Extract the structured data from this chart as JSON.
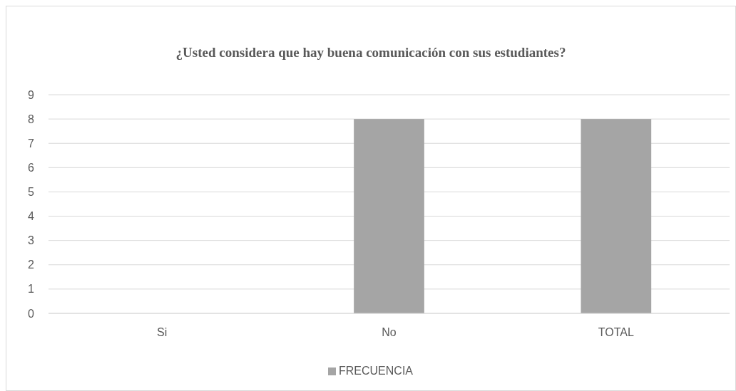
{
  "chart_data": {
    "type": "bar",
    "title": "¿Usted considera que hay buena comunicación con sus estudiantes?",
    "categories": [
      "Si",
      "No",
      "TOTAL"
    ],
    "series": [
      {
        "name": "FRECUENCIA",
        "color": "#a5a5a5",
        "values": [
          0,
          8,
          8
        ]
      }
    ],
    "ylim": [
      0,
      9
    ],
    "yticks": [
      0,
      1,
      2,
      3,
      4,
      5,
      6,
      7,
      8,
      9
    ],
    "grid": "y",
    "legend": "bottom"
  }
}
